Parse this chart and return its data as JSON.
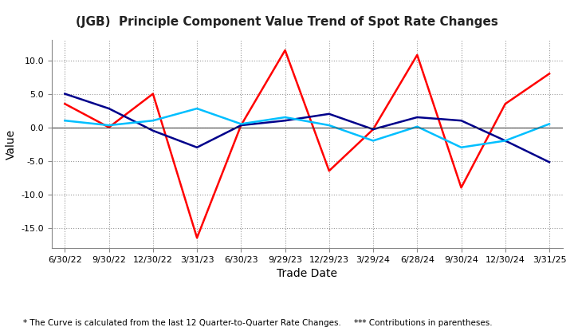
{
  "title": "(JGB)  Principle Component Value Trend of Spot Rate Changes",
  "xlabel": "Trade Date",
  "ylabel": "Value",
  "footnote": "* The Curve is calculated from the last 12 Quarter-to-Quarter Rate Changes.     *** Contributions in parentheses.",
  "x_labels": [
    "6/30/22",
    "9/30/22",
    "12/30/22",
    "3/31/23",
    "6/30/23",
    "9/29/23",
    "12/29/23",
    "3/29/24",
    "6/28/24",
    "9/30/24",
    "12/30/24",
    "3/31/25"
  ],
  "compo1": [
    3.5,
    0.0,
    5.0,
    -16.5,
    0.3,
    11.5,
    -6.5,
    -0.3,
    10.8,
    -9.0,
    3.5,
    8.0
  ],
  "compo2": [
    5.0,
    2.8,
    -0.5,
    -3.0,
    0.3,
    1.0,
    2.0,
    -0.3,
    1.5,
    1.0,
    -2.0,
    -5.2
  ],
  "compo3": [
    1.0,
    0.3,
    1.0,
    2.8,
    0.5,
    1.5,
    0.3,
    -2.0,
    0.1,
    -3.0,
    -2.0,
    0.5
  ],
  "color_compo1": "#FF0000",
  "color_compo2": "#00008B",
  "color_compo3": "#00BFFF",
  "ylim": [
    -18,
    13
  ],
  "yticks": [
    -15.0,
    -10.0,
    -5.0,
    0.0,
    5.0,
    10.0
  ],
  "ytick_labels": [
    "-15.0",
    "-10.0",
    "-5.0",
    "0.0",
    "5.0",
    "10.0"
  ],
  "linewidth": 1.8,
  "background_color": "#FFFFFF",
  "grid_color": "#999999",
  "title_fontsize": 11,
  "axis_label_fontsize": 10,
  "tick_fontsize": 8,
  "legend_fontsize": 9,
  "footnote_fontsize": 7.5
}
